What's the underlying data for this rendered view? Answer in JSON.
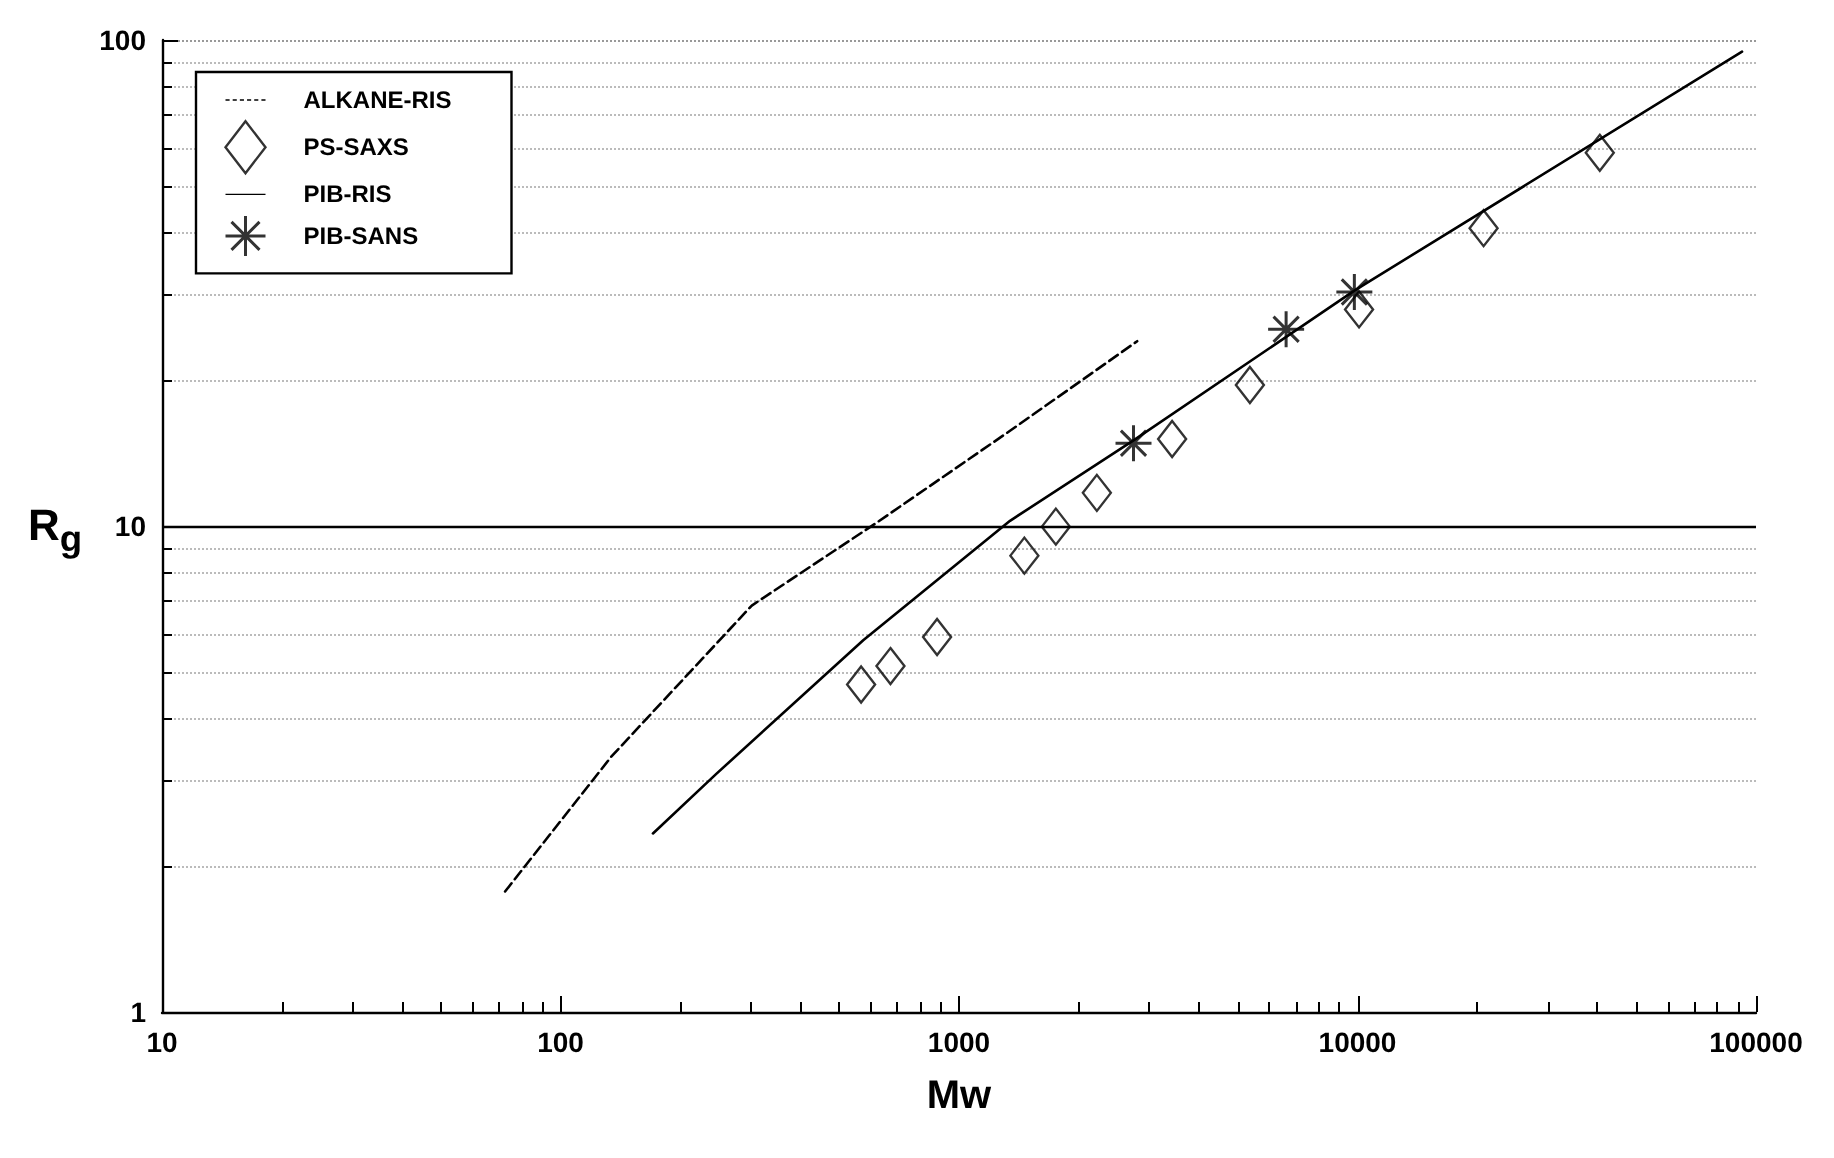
{
  "chart_data": {
    "type": "line",
    "xlabel": "Mw",
    "ylabel": "R$_{g}$",
    "log": "xy",
    "grid": "y",
    "legend": "top left",
    "xlim": [
      10,
      100000
    ],
    "xticks": [
      10,
      100,
      1000,
      10000,
      100000
    ],
    "ylim": [
      1,
      100
    ],
    "yticks": [
      1,
      10,
      100
    ],
    "ref_lines": [
      {
        "axis": "y",
        "value": 10,
        "color": "#000000",
        "line_style": "solid"
      }
    ],
    "series": [
      {
        "name": "ALKANE-RIS",
        "marker": "none",
        "line_style": "dashed",
        "color": "#000000",
        "x": [
          72.6,
          134,
          302,
          615,
          1343,
          2800
        ],
        "values": [
          1.77,
          3.35,
          6.86,
          10.1,
          15.7,
          24.0
        ]
      },
      {
        "name": "PS-SAXS",
        "type": "scatter",
        "marker": "diamond",
        "color": "#000000",
        "x": [
          568,
          673,
          881,
          1459,
          1750,
          2218,
          3426,
          5370,
          10090,
          20720,
          40550
        ],
        "values": [
          4.72,
          5.15,
          5.91,
          8.69,
          9.97,
          11.7,
          15.1,
          19.5,
          27.9,
          41.0,
          58.6
        ]
      },
      {
        "name": "PIB-RIS",
        "marker": "none",
        "line_style": "solid",
        "color": "#000000",
        "x": [
          170.6,
          246,
          575,
          1343,
          2741,
          9820,
          92260
        ],
        "values": [
          2.33,
          3.09,
          5.82,
          10.25,
          15.0,
          30.5,
          94.6
        ]
      },
      {
        "name": "PIB-SANS",
        "type": "scatter",
        "marker": "cross",
        "color": "#000000",
        "x": [
          2741,
          6620,
          9820
        ],
        "values": [
          14.8,
          25.4,
          30.3
        ]
      }
    ]
  }
}
